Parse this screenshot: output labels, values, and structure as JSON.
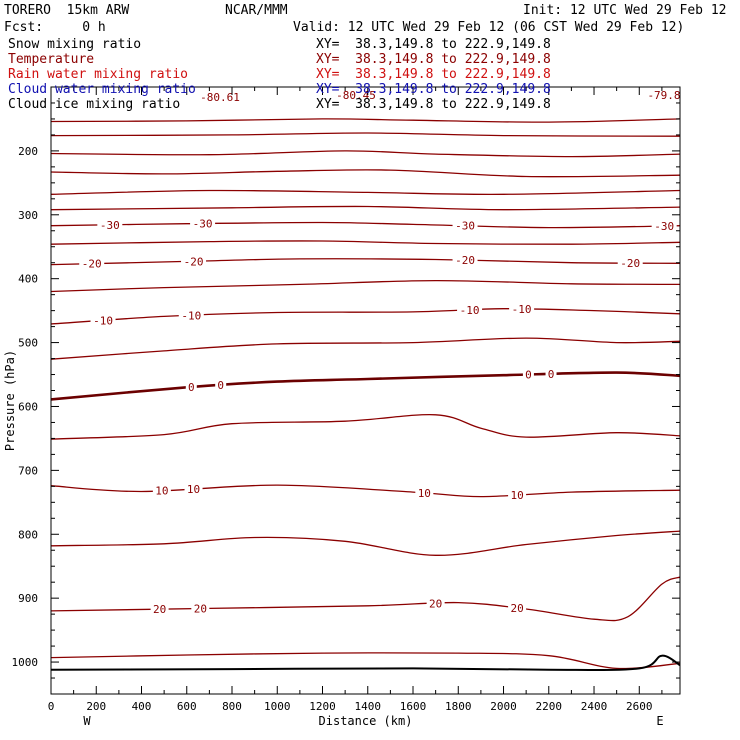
{
  "header": {
    "model": "TORERO  15km ARW",
    "org": "NCAR/MMM",
    "init": "Init: 12 UTC Wed 29 Feb 12",
    "fcst": "Fcst:     0 h",
    "valid": "Valid: 12 UTC Wed 29 Feb 12 (06 CST Wed 29 Feb 12)"
  },
  "fields": [
    {
      "name": "Snow mixing ratio",
      "xy": "XY=  38.3,149.8 to 222.9,149.8",
      "color": "#000000"
    },
    {
      "name": "Temperature",
      "xy": "XY=  38.3,149.8 to 222.9,149.8",
      "color": "#8b0000"
    },
    {
      "name": "Rain water mixing ratio",
      "xy": "XY=  38.3,149.8 to 222.9,149.8",
      "color": "#d01010"
    },
    {
      "name": "Cloud water mixing ratio",
      "xy": "XY=  38.3,149.8 to 222.9,149.8",
      "color": "#1010b0"
    },
    {
      "name": "Cloud ice mixing ratio",
      "xy": "XY=  38.3,149.8 to 222.9,149.8",
      "color": "#000000"
    }
  ],
  "chart_data": {
    "type": "line",
    "title": "",
    "xlabel": "Distance (km)",
    "ylabel": "Pressure (hPa)",
    "xlim": [
      0,
      2780
    ],
    "ylim": [
      1050,
      100
    ],
    "x_ticks": [
      0,
      200,
      400,
      600,
      800,
      1000,
      1200,
      1400,
      1600,
      1800,
      2000,
      2200,
      2400,
      2600
    ],
    "y_ticks": [
      200,
      300,
      400,
      500,
      600,
      700,
      800,
      900,
      1000
    ],
    "x_end_labels": {
      "left": "W",
      "right": "E"
    },
    "grid": false,
    "contour_color": "#8b0000",
    "zero_contour_color": "#6b0000",
    "terrain_color": "#000000",
    "top_labels": [
      "-80.61",
      "-80.45",
      "-79.8"
    ],
    "series": [
      {
        "pressure_mean": 150,
        "points": [
          [
            0,
            154
          ],
          [
            600,
            153
          ],
          [
            1200,
            150
          ],
          [
            1600,
            152
          ],
          [
            2200,
            155
          ],
          [
            2780,
            150
          ]
        ]
      },
      {
        "pressure_mean": 175,
        "points": [
          [
            0,
            176
          ],
          [
            800,
            175
          ],
          [
            1400,
            172
          ],
          [
            2000,
            176
          ],
          [
            2780,
            177
          ]
        ]
      },
      {
        "pressure_mean": 205,
        "points": [
          [
            0,
            204
          ],
          [
            700,
            206
          ],
          [
            1300,
            200
          ],
          [
            1700,
            205
          ],
          [
            2300,
            209
          ],
          [
            2780,
            205
          ]
        ]
      },
      {
        "pressure_mean": 235,
        "points": [
          [
            0,
            233
          ],
          [
            500,
            236
          ],
          [
            1000,
            232
          ],
          [
            1500,
            230
          ],
          [
            2100,
            240
          ],
          [
            2780,
            238
          ]
        ]
      },
      {
        "pressure_mean": 265,
        "points": [
          [
            0,
            268
          ],
          [
            700,
            262
          ],
          [
            1400,
            265
          ],
          [
            2000,
            268
          ],
          [
            2780,
            262
          ]
        ]
      },
      {
        "pressure_mean": 290,
        "points": [
          [
            0,
            292
          ],
          [
            800,
            289
          ],
          [
            1400,
            287
          ],
          [
            2000,
            292
          ],
          [
            2780,
            288
          ]
        ]
      },
      {
        "value": -30,
        "points": [
          [
            0,
            317
          ],
          [
            600,
            314
          ],
          [
            1200,
            312
          ],
          [
            1600,
            315
          ],
          [
            2200,
            320
          ],
          [
            2780,
            317
          ]
        ]
      },
      {
        "pressure_mean": 345,
        "points": [
          [
            0,
            346
          ],
          [
            700,
            342
          ],
          [
            1200,
            341
          ],
          [
            1700,
            345
          ],
          [
            2300,
            346
          ],
          [
            2780,
            343
          ]
        ]
      },
      {
        "value": -20,
        "points": [
          [
            0,
            378
          ],
          [
            600,
            373
          ],
          [
            1100,
            369
          ],
          [
            1700,
            370
          ],
          [
            2300,
            375
          ],
          [
            2780,
            376
          ]
        ]
      },
      {
        "pressure_mean": 410,
        "points": [
          [
            0,
            420
          ],
          [
            500,
            414
          ],
          [
            1100,
            409
          ],
          [
            1700,
            403
          ],
          [
            2300,
            408
          ],
          [
            2780,
            409
          ]
        ]
      },
      {
        "value": -10,
        "points": [
          [
            0,
            471
          ],
          [
            500,
            459
          ],
          [
            1000,
            453
          ],
          [
            1600,
            452
          ],
          [
            2000,
            447
          ],
          [
            2400,
            450
          ],
          [
            2780,
            455
          ]
        ]
      },
      {
        "pressure_mean": 500,
        "points": [
          [
            0,
            526
          ],
          [
            500,
            513
          ],
          [
            1000,
            502
          ],
          [
            1600,
            500
          ],
          [
            2100,
            493
          ],
          [
            2500,
            500
          ],
          [
            2780,
            498
          ]
        ]
      },
      {
        "value": 0,
        "points": [
          [
            0,
            589
          ],
          [
            600,
            570
          ],
          [
            1000,
            561
          ],
          [
            1400,
            557
          ],
          [
            2000,
            551
          ],
          [
            2500,
            547
          ],
          [
            2780,
            552
          ]
        ]
      },
      {
        "pressure_mean": 645,
        "points": [
          [
            0,
            651
          ],
          [
            500,
            644
          ],
          [
            800,
            627
          ],
          [
            1300,
            623
          ],
          [
            1700,
            613
          ],
          [
            1900,
            634
          ],
          [
            2100,
            648
          ],
          [
            2500,
            641
          ],
          [
            2780,
            646
          ]
        ]
      },
      {
        "value": 10,
        "points": [
          [
            0,
            724
          ],
          [
            400,
            733
          ],
          [
            1000,
            723
          ],
          [
            1600,
            734
          ],
          [
            1900,
            741
          ],
          [
            2300,
            734
          ],
          [
            2780,
            731
          ]
        ]
      },
      {
        "pressure_mean": 805,
        "points": [
          [
            0,
            818
          ],
          [
            500,
            815
          ],
          [
            900,
            805
          ],
          [
            1300,
            811
          ],
          [
            1700,
            833
          ],
          [
            2100,
            816
          ],
          [
            2500,
            802
          ],
          [
            2780,
            795
          ]
        ]
      },
      {
        "value": 20,
        "points": [
          [
            0,
            920
          ],
          [
            700,
            916
          ],
          [
            1400,
            912
          ],
          [
            1800,
            907
          ],
          [
            2100,
            917
          ],
          [
            2400,
            933
          ],
          [
            2550,
            929
          ],
          [
            2700,
            878
          ],
          [
            2780,
            867
          ]
        ]
      },
      {
        "pressure_mean": 990,
        "points": [
          [
            0,
            993
          ],
          [
            600,
            989
          ],
          [
            1200,
            986
          ],
          [
            1800,
            986
          ],
          [
            2200,
            990
          ],
          [
            2500,
            1010
          ],
          [
            2780,
            1002
          ]
        ]
      }
    ],
    "terrain": [
      [
        0,
        1012
      ],
      [
        800,
        1011
      ],
      [
        1600,
        1010
      ],
      [
        2200,
        1012
      ],
      [
        2600,
        1010
      ],
      [
        2700,
        990
      ],
      [
        2780,
        1005
      ]
    ]
  }
}
